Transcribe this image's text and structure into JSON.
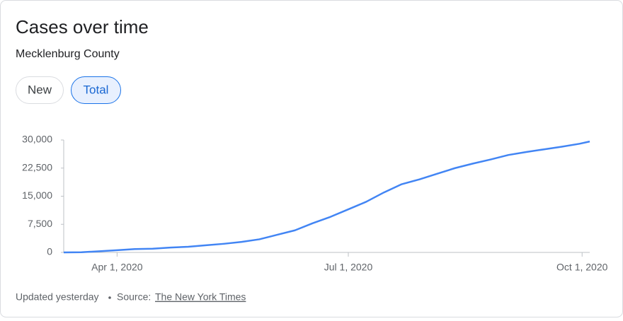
{
  "tabs": [
    "New",
    "Total"
  ],
  "selected_tab": 1,
  "footer": {
    "updated": "Updated yesterday",
    "source_label": "Source:",
    "source": "The New York Times"
  },
  "chart_data": {
    "type": "line",
    "title": "Cases over time",
    "subtitle": "Mecklenburg County",
    "x": [
      "2020-03-11",
      "2020-03-18",
      "2020-03-25",
      "2020-04-01",
      "2020-04-08",
      "2020-04-15",
      "2020-04-22",
      "2020-04-29",
      "2020-05-06",
      "2020-05-13",
      "2020-05-20",
      "2020-05-27",
      "2020-06-03",
      "2020-06-10",
      "2020-06-17",
      "2020-06-24",
      "2020-07-01",
      "2020-07-08",
      "2020-07-15",
      "2020-07-22",
      "2020-07-29",
      "2020-08-05",
      "2020-08-12",
      "2020-08-19",
      "2020-08-26",
      "2020-09-02",
      "2020-09-09",
      "2020-09-16",
      "2020-09-23",
      "2020-09-30",
      "2020-10-04"
    ],
    "series": [
      {
        "name": "Total",
        "color": "#4285f4",
        "values": [
          0,
          50,
          300,
          600,
          900,
          1000,
          1300,
          1500,
          1900,
          2300,
          2800,
          3500,
          4700,
          5900,
          7800,
          9500,
          11500,
          13500,
          16000,
          18200,
          19500,
          21000,
          22500,
          23700,
          24800,
          26000,
          26800,
          27500,
          28200,
          29000,
          29600
        ]
      }
    ],
    "xlim": [
      "2020-03-11",
      "2020-10-04"
    ],
    "xticks": [
      {
        "value": "2020-04-01",
        "label": "Apr 1, 2020"
      },
      {
        "value": "2020-07-01",
        "label": "Jul 1, 2020"
      },
      {
        "value": "2020-10-01",
        "label": "Oct 1, 2020"
      }
    ],
    "ylim": [
      0,
      30000
    ],
    "yticks": [
      0,
      {
        "value": 7500,
        "label": "7,500"
      },
      {
        "value": 15000,
        "label": "15,000"
      },
      {
        "value": 22500,
        "label": "22,500"
      },
      {
        "value": 30000,
        "label": "30,000"
      }
    ],
    "grid": false
  }
}
